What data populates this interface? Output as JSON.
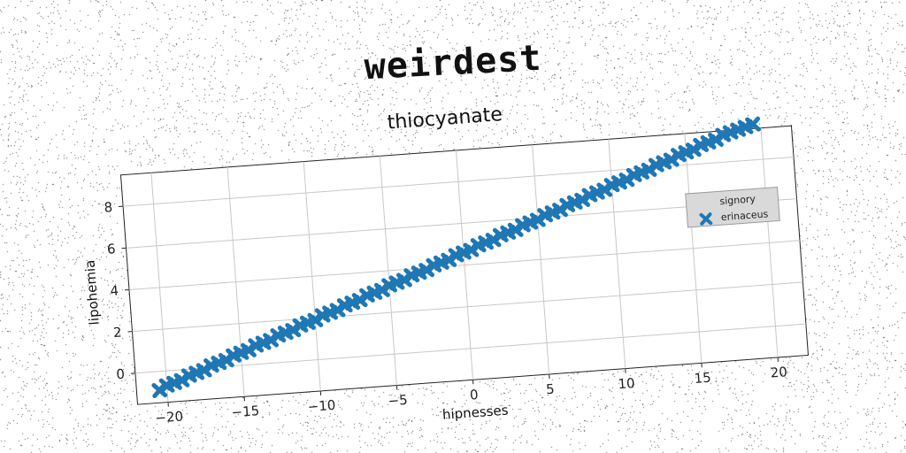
{
  "main_title": "weirdest",
  "chart_data": {
    "type": "scatter",
    "title": "thiocyanate",
    "xlabel": "hipnesses",
    "ylabel": "lipohemia",
    "xlim": [
      -22,
      22
    ],
    "ylim": [
      -1.5,
      9.5
    ],
    "xticks": [
      -20,
      -15,
      -10,
      -5,
      0,
      5,
      10,
      15,
      20
    ],
    "yticks": [
      0,
      2,
      4,
      6,
      8
    ],
    "grid": true,
    "legend_position": "right",
    "colors": {
      "marker": "#1f77b4",
      "legend_bg": "#d9d9d9"
    },
    "series": [
      {
        "name": "signory",
        "marker": "none",
        "x": [],
        "y": []
      },
      {
        "name": "erinaceus",
        "marker": "x",
        "x": [
          -20.5,
          -20,
          -19.5,
          -19,
          -18.5,
          -18,
          -17.5,
          -17,
          -16.5,
          -16,
          -15.5,
          -15,
          -14.5,
          -14,
          -13.5,
          -13,
          -12.5,
          -12,
          -11.5,
          -11,
          -10.5,
          -10,
          -9.5,
          -9,
          -8.5,
          -8,
          -7.5,
          -7,
          -6.5,
          -6,
          -5.5,
          -5,
          -4.5,
          -4,
          -3.5,
          -3,
          -2.5,
          -2,
          -1.5,
          -1,
          -0.5,
          0,
          0.5,
          1,
          1.5,
          2,
          2.5,
          3,
          3.5,
          4,
          4.5,
          5,
          5.5,
          6,
          6.5,
          7,
          7.5,
          8,
          8.5,
          9,
          9.5,
          10,
          10.5,
          11,
          11.5,
          12,
          12.5,
          13,
          13.5,
          14,
          14.5,
          15,
          15.5,
          16,
          16.5,
          17,
          17.5,
          18,
          18.5,
          19,
          19.5
        ],
        "y": [
          -0.9,
          -0.7,
          -0.6,
          -0.5,
          -0.3,
          -0.2,
          -0.1,
          0.1,
          0.2,
          0.3,
          0.5,
          0.6,
          0.7,
          0.9,
          1.0,
          1.1,
          1.3,
          1.4,
          1.5,
          1.7,
          1.8,
          1.9,
          2.1,
          2.2,
          2.3,
          2.5,
          2.6,
          2.7,
          2.9,
          3.0,
          3.1,
          3.3,
          3.4,
          3.5,
          3.7,
          3.8,
          3.9,
          4.1,
          4.2,
          4.3,
          4.5,
          4.6,
          4.7,
          4.9,
          5.0,
          5.1,
          5.3,
          5.4,
          5.5,
          5.7,
          5.8,
          5.9,
          6.1,
          6.2,
          6.3,
          6.5,
          6.6,
          6.7,
          6.9,
          7.0,
          7.1,
          7.3,
          7.4,
          7.5,
          7.7,
          7.8,
          7.9,
          8.1,
          8.2,
          8.3,
          8.5,
          8.6,
          8.7,
          8.9,
          9.0,
          9.1,
          9.3,
          9.4,
          9.5,
          9.6,
          9.7
        ]
      }
    ]
  }
}
